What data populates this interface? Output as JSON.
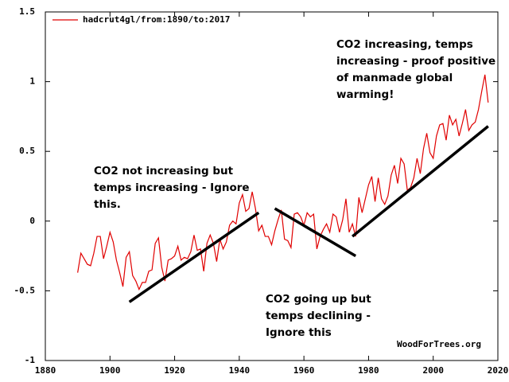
{
  "chart_data": {
    "type": "line",
    "legend": "top-left",
    "watermark": "WoodForTrees.org",
    "xlim": [
      1880,
      2020
    ],
    "xticks": [
      1880,
      1900,
      1920,
      1940,
      1960,
      1980,
      2000,
      2020
    ],
    "ylim": [
      -1,
      1.5
    ],
    "yticks": [
      -1,
      -0.5,
      0,
      0.5,
      1,
      1.5
    ],
    "grid": false,
    "x": [
      1890,
      1891,
      1892,
      1893,
      1894,
      1895,
      1896,
      1897,
      1898,
      1899,
      1900,
      1901,
      1902,
      1903,
      1904,
      1905,
      1906,
      1907,
      1908,
      1909,
      1910,
      1911,
      1912,
      1913,
      1914,
      1915,
      1916,
      1917,
      1918,
      1919,
      1920,
      1921,
      1922,
      1923,
      1924,
      1925,
      1926,
      1927,
      1928,
      1929,
      1930,
      1931,
      1932,
      1933,
      1934,
      1935,
      1936,
      1937,
      1938,
      1939,
      1940,
      1941,
      1942,
      1943,
      1944,
      1945,
      1946,
      1947,
      1948,
      1949,
      1950,
      1951,
      1952,
      1953,
      1954,
      1955,
      1956,
      1957,
      1958,
      1959,
      1960,
      1961,
      1962,
      1963,
      1964,
      1965,
      1966,
      1967,
      1968,
      1969,
      1970,
      1971,
      1972,
      1973,
      1974,
      1975,
      1976,
      1977,
      1978,
      1979,
      1980,
      1981,
      1982,
      1983,
      1984,
      1985,
      1986,
      1987,
      1988,
      1989,
      1990,
      1991,
      1992,
      1993,
      1994,
      1995,
      1996,
      1997,
      1998,
      1999,
      2000,
      2001,
      2002,
      2003,
      2004,
      2005,
      2006,
      2007,
      2008,
      2009,
      2010,
      2011,
      2012,
      2013,
      2014,
      2015,
      2016,
      2017
    ],
    "series": [
      {
        "name": "hadcrut4gl/from:1890/to:2017",
        "color": "#e00000",
        "values": [
          -0.37,
          -0.23,
          -0.27,
          -0.31,
          -0.32,
          -0.23,
          -0.11,
          -0.11,
          -0.27,
          -0.18,
          -0.08,
          -0.15,
          -0.28,
          -0.37,
          -0.47,
          -0.26,
          -0.22,
          -0.39,
          -0.43,
          -0.49,
          -0.44,
          -0.44,
          -0.36,
          -0.35,
          -0.16,
          -0.12,
          -0.33,
          -0.43,
          -0.28,
          -0.27,
          -0.25,
          -0.18,
          -0.28,
          -0.26,
          -0.27,
          -0.22,
          -0.1,
          -0.21,
          -0.2,
          -0.36,
          -0.16,
          -0.1,
          -0.16,
          -0.29,
          -0.13,
          -0.2,
          -0.15,
          -0.03,
          0,
          -0.02,
          0.13,
          0.19,
          0.07,
          0.09,
          0.21,
          0.09,
          -0.07,
          -0.03,
          -0.11,
          -0.11,
          -0.17,
          -0.07,
          0.01,
          0.08,
          -0.13,
          -0.14,
          -0.19,
          0.05,
          0.06,
          0.03,
          -0.03,
          0.06,
          0.03,
          0.05,
          -0.2,
          -0.11,
          -0.06,
          -0.02,
          -0.08,
          0.05,
          0.03,
          -0.08,
          0.01,
          0.16,
          -0.08,
          -0.02,
          -0.11,
          0.17,
          0.06,
          0.16,
          0.26,
          0.32,
          0.14,
          0.31,
          0.16,
          0.12,
          0.18,
          0.33,
          0.4,
          0.27,
          0.45,
          0.41,
          0.22,
          0.24,
          0.31,
          0.45,
          0.34,
          0.52,
          0.63,
          0.49,
          0.45,
          0.61,
          0.69,
          0.7,
          0.58,
          0.76,
          0.69,
          0.73,
          0.61,
          0.7,
          0.8,
          0.65,
          0.69,
          0.71,
          0.8,
          0.93,
          1.05,
          0.85
        ]
      }
    ],
    "trend_lines": [
      {
        "color": "#000000",
        "x": [
          1906,
          1946
        ],
        "values": [
          -0.58,
          0.06
        ]
      },
      {
        "color": "#000000",
        "x": [
          1951,
          1976
        ],
        "values": [
          0.09,
          -0.25
        ]
      },
      {
        "color": "#000000",
        "x": [
          1975,
          2017
        ],
        "values": [
          -0.11,
          0.68
        ]
      }
    ],
    "annotations": [
      {
        "lines": [
          "CO2 increasing, temps",
          "increasing - proof positive",
          "of manmade global",
          "warming!"
        ]
      },
      {
        "lines": [
          "CO2 not increasing but",
          "temps increasing - Ignore",
          "this."
        ]
      },
      {
        "lines": [
          "CO2 going up but",
          "temps declining -",
          "Ignore this"
        ]
      }
    ]
  }
}
